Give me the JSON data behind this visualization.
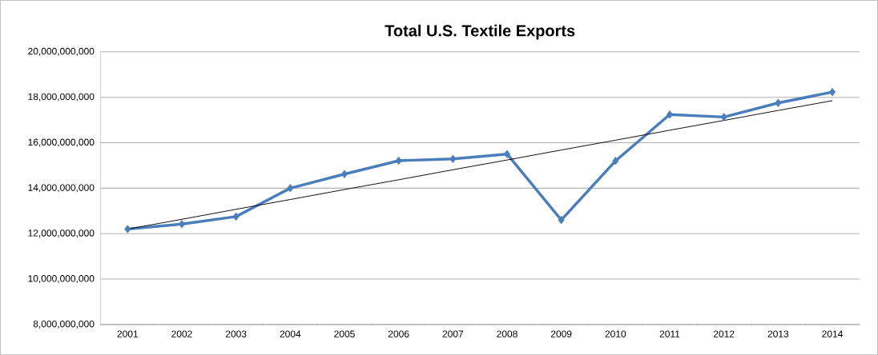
{
  "chart_data": {
    "type": "line",
    "title": "Total U.S. Textile Exports",
    "categories": [
      "2001",
      "2002",
      "2003",
      "2004",
      "2005",
      "2006",
      "2007",
      "2008",
      "2009",
      "2010",
      "2011",
      "2012",
      "2013",
      "2014"
    ],
    "series": [
      {
        "color": "#4a7ebb",
        "marker": "diamond",
        "values": [
          12200000000,
          12420000000,
          12750000000,
          14000000000,
          14620000000,
          15210000000,
          15290000000,
          15500000000,
          12600000000,
          15200000000,
          17240000000,
          17130000000,
          17750000000,
          18230000000
        ]
      },
      {
        "type": "line",
        "color": "#000000",
        "marker": "none",
        "values": [
          12200000000,
          12630000000,
          13070000000,
          13500000000,
          13940000000,
          14370000000,
          14810000000,
          15240000000,
          15680000000,
          16110000000,
          16550000000,
          16980000000,
          17420000000,
          17850000000
        ]
      }
    ],
    "ylim": [
      8000000000,
      20000000000
    ],
    "yticks": [
      {
        "value": 8000000000,
        "label": "8,000,000,000"
      },
      {
        "value": 10000000000,
        "label": "10,000,000,000"
      },
      {
        "value": 12000000000,
        "label": "12,000,000,000"
      },
      {
        "value": 14000000000,
        "label": "14,000,000,000"
      },
      {
        "value": 16000000000,
        "label": "16,000,000,000"
      },
      {
        "value": 18000000000,
        "label": "18,000,000,000"
      },
      {
        "value": 20000000000,
        "label": "20,000,000,000"
      }
    ],
    "grid": "y"
  }
}
